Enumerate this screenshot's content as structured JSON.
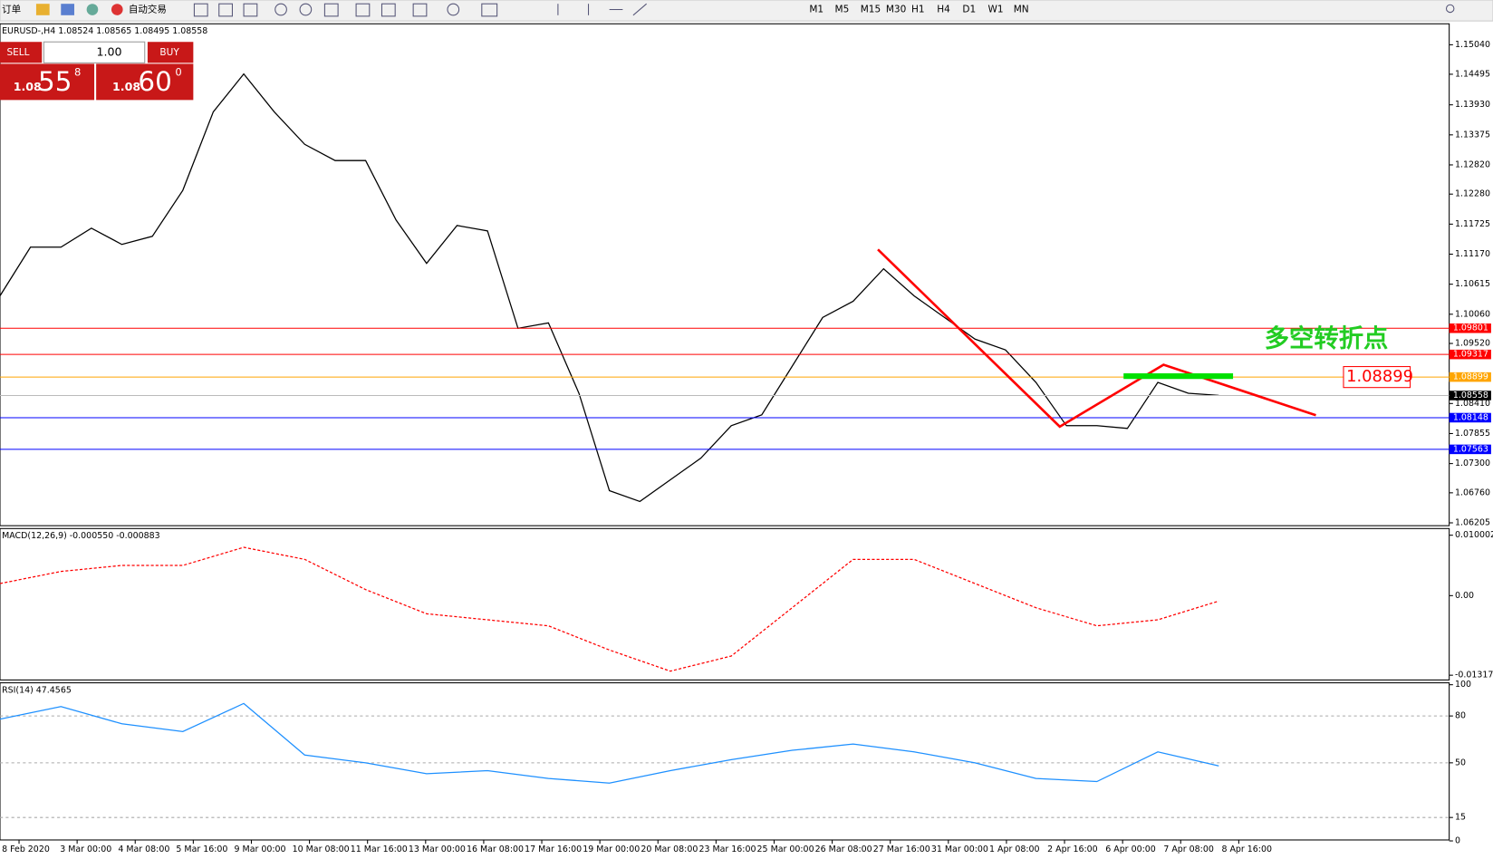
{
  "toolbar": {
    "new_order": "订单",
    "auto_trading": "自动交易",
    "timeframes": [
      "M1",
      "M5",
      "M15",
      "M30",
      "H1",
      "H4",
      "D1",
      "W1",
      "MN"
    ]
  },
  "trade_panel": {
    "sell": "SELL",
    "lot": "1.00",
    "buy": "BUY",
    "bid_prefix": "1.08",
    "bid_big": "55",
    "bid_small": "8",
    "ask_prefix": "1.08",
    "ask_big": "60",
    "ask_small": "0"
  },
  "chart_data": [
    {
      "type": "line",
      "title": "EURUSD-,H4 1.08524 1.08565 1.08495 1.08558",
      "color": "#000000",
      "values": [
        1.104,
        1.113,
        1.113,
        1.1165,
        1.1135,
        1.115,
        1.1235,
        1.138,
        1.145,
        1.138,
        1.132,
        1.129,
        1.129,
        1.118,
        1.11,
        1.117,
        1.116,
        1.098,
        1.099,
        1.086,
        1.068,
        1.066,
        1.07,
        1.074,
        1.08,
        1.082,
        1.091,
        1.1,
        1.103,
        1.109,
        1.104,
        1.1,
        1.096,
        1.094,
        1.088,
        1.08,
        1.08,
        1.0795,
        1.088,
        1.086,
        1.0856
      ],
      "ylim": [
        1.06205,
        1.1504
      ],
      "yticks": [
        {
          "value": 1.1504,
          "label": "1.15040"
        },
        1.14495,
        {
          "value": 1.1393,
          "label": "1.13930"
        },
        1.13375,
        {
          "value": 1.1282,
          "label": "1.12820"
        },
        {
          "value": 1.1228,
          "label": "1.12280"
        },
        1.11725,
        {
          "value": 1.1117,
          "label": "1.11170"
        },
        1.10615,
        {
          "value": 1.1006,
          "label": "1.10060"
        },
        {
          "value": 1.0952,
          "label": "1.09520"
        },
        {
          "value": 1.0841,
          "label": "1.08410"
        },
        1.07855,
        {
          "value": 1.073,
          "label": "1.07300"
        },
        {
          "value": 1.0676,
          "label": "1.06760"
        },
        1.06205
      ],
      "levels": [
        {
          "value": 1.09801,
          "color": "#ff0000"
        },
        {
          "value": 1.09317,
          "color": "#ff0000"
        },
        {
          "value": 1.08899,
          "color": "#ffa500"
        },
        {
          "value": 1.08558,
          "color": "#000000"
        },
        {
          "value": 1.08148,
          "color": "#0000ff"
        },
        {
          "value": 1.07563,
          "color": "#0000ff"
        }
      ],
      "annotation": "多空转折点",
      "annotation_price": 1.08899,
      "x_labels": [
        "8 Feb 2020",
        "3 Mar 00:00",
        "4 Mar 08:00",
        "5 Mar 16:00",
        "9 Mar 00:00",
        "10 Mar 08:00",
        "11 Mar 16:00",
        "13 Mar 00:00",
        "16 Mar 08:00",
        "17 Mar 16:00",
        "19 Mar 00:00",
        "20 Mar 08:00",
        "23 Mar 16:00",
        "25 Mar 00:00",
        "26 Mar 08:00",
        "27 Mar 16:00",
        "31 Mar 00:00",
        "1 Apr 08:00",
        "2 Apr 16:00",
        "6 Apr 00:00",
        "7 Apr 08:00",
        "8 Apr 16:00"
      ]
    },
    {
      "type": "line",
      "title": "MACD(12,26,9) -0.000550 -0.000883",
      "color": "#ff0000",
      "values": [
        0.002,
        0.004,
        0.005,
        0.005,
        0.008,
        0.006,
        0.001,
        -0.003,
        -0.004,
        -0.005,
        -0.009,
        -0.0125,
        -0.01,
        -0.002,
        0.006,
        0.006,
        0.002,
        -0.002,
        -0.005,
        -0.004,
        -0.0009
      ],
      "ylim": [
        -0.013171,
        0.010002
      ],
      "yticks": [
        0.010002,
        {
          "value": 0,
          "label": "0.00"
        },
        -0.013171
      ]
    },
    {
      "type": "line",
      "title": "RSI(14) 47.4565",
      "color": "#1e90ff",
      "values": [
        78,
        86,
        75,
        70,
        88,
        55,
        50,
        43,
        45,
        40,
        37,
        45,
        52,
        58,
        62,
        57,
        50,
        40,
        38,
        57,
        48
      ],
      "ylim": [
        0,
        100
      ],
      "yticks": [
        100,
        80,
        50,
        15,
        0
      ]
    }
  ]
}
